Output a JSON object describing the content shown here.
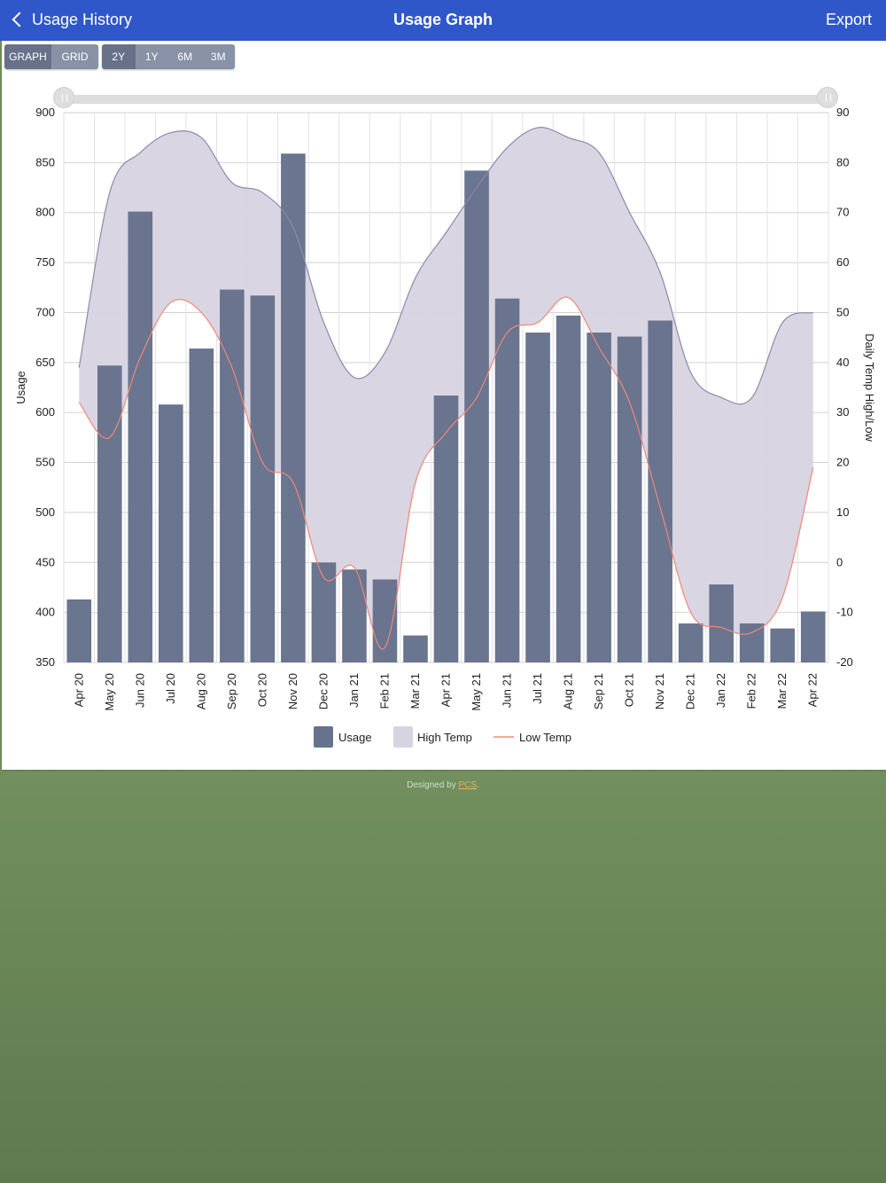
{
  "navbar": {
    "back_label": "Usage History",
    "title": "Usage Graph",
    "export_label": "Export"
  },
  "view_toggle": {
    "options": [
      "GRAPH",
      "GRID"
    ],
    "selected": "GRAPH"
  },
  "range_toggle": {
    "options": [
      "2Y",
      "1Y",
      "6M",
      "3M"
    ],
    "selected": "2Y"
  },
  "footer": {
    "prefix": "Designed by ",
    "link": "PCS",
    "suffix": "."
  },
  "colors": {
    "navbar": "#2f57c9",
    "usage_bar": "#67728d",
    "high_temp_fill": "#d7d3e0",
    "high_temp_line": "#8d88ac",
    "low_temp_line": "#f08878",
    "background": "#6b8a58"
  },
  "chart_data": {
    "type": "bar",
    "categories": [
      "Apr 20",
      "May 20",
      "Jun 20",
      "Jul 20",
      "Aug 20",
      "Sep 20",
      "Oct 20",
      "Nov 20",
      "Dec 20",
      "Jan 21",
      "Feb 21",
      "Mar 21",
      "Apr 21",
      "May 21",
      "Jun 21",
      "Jul 21",
      "Aug 21",
      "Sep 21",
      "Oct 21",
      "Nov 21",
      "Dec 21",
      "Jan 22",
      "Feb 22",
      "Mar 22",
      "Apr 22"
    ],
    "series": [
      {
        "name": "Usage",
        "type": "bar",
        "axis": "left",
        "values": [
          413,
          647,
          801,
          608,
          664,
          723,
          717,
          859,
          450,
          443,
          433,
          377,
          617,
          842,
          714,
          680,
          697,
          680,
          676,
          692,
          389,
          428,
          389,
          384,
          401
        ]
      },
      {
        "name": "High Temp",
        "type": "area",
        "axis": "right",
        "values": [
          39,
          74,
          82,
          86,
          85,
          76,
          74,
          67,
          48,
          37,
          42,
          57,
          66,
          75,
          83,
          87,
          85,
          82,
          70,
          58,
          38,
          33,
          33,
          48,
          50
        ]
      },
      {
        "name": "Low Temp",
        "type": "line",
        "axis": "right",
        "values": [
          32,
          25,
          41,
          52,
          50,
          39,
          20,
          16,
          -3,
          -1,
          -17,
          16,
          26,
          33,
          46,
          48,
          53,
          43,
          32,
          11,
          -10,
          -13,
          -14,
          -7,
          19
        ]
      }
    ],
    "ylabel": "Usage",
    "y2label": "Daily Temp High/Low",
    "ylim": [
      350,
      900
    ],
    "y2lim": [
      -20,
      90
    ],
    "yticks": [
      350,
      400,
      450,
      500,
      550,
      600,
      650,
      700,
      750,
      800,
      850,
      900
    ],
    "y2ticks": [
      -20,
      -10,
      0,
      10,
      20,
      30,
      40,
      50,
      60,
      70,
      80,
      90
    ],
    "grid": true,
    "legend": "bottom"
  }
}
